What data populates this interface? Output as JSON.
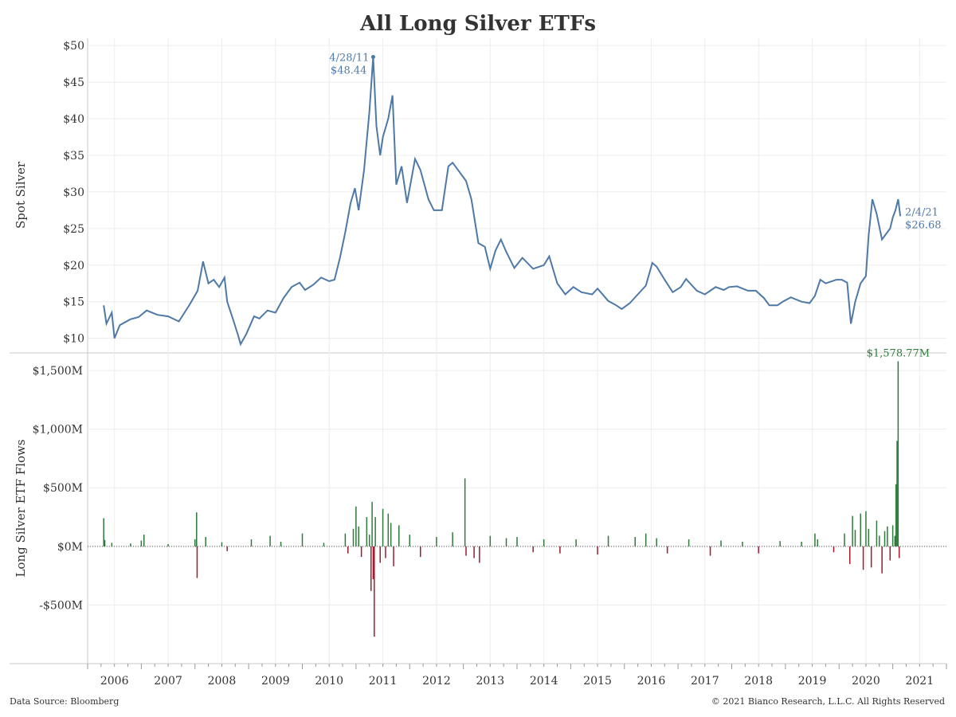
{
  "chart_data": {
    "title": "All Long Silver ETFs",
    "x_axis": {
      "type": "time",
      "range": [
        2006.0,
        2022.0
      ],
      "tick_labels": [
        "2006",
        "2007",
        "2008",
        "2009",
        "2010",
        "2011",
        "2012",
        "2013",
        "2014",
        "2015",
        "2016",
        "2017",
        "2018",
        "2019",
        "2020",
        "2021"
      ]
    },
    "panels": [
      {
        "type": "line",
        "ylabel": "Spot Silver",
        "ylim": [
          8,
          51
        ],
        "y_ticks": [
          10,
          15,
          20,
          25,
          30,
          35,
          40,
          45,
          50
        ],
        "y_tick_labels": [
          "$10",
          "$15",
          "$20",
          "$25",
          "$30",
          "$35",
          "$40",
          "$45",
          "$50"
        ],
        "color": "#4e79a7",
        "series": [
          {
            "name": "Spot Silver",
            "points": [
              [
                2006.3,
                14.5
              ],
              [
                2006.35,
                12.0
              ],
              [
                2006.45,
                13.5
              ],
              [
                2006.5,
                10.0
              ],
              [
                2006.6,
                11.8
              ],
              [
                2006.8,
                12.6
              ],
              [
                2006.95,
                12.9
              ],
              [
                2007.1,
                13.8
              ],
              [
                2007.3,
                13.2
              ],
              [
                2007.5,
                13.0
              ],
              [
                2007.7,
                12.3
              ],
              [
                2007.9,
                14.6
              ],
              [
                2008.05,
                16.5
              ],
              [
                2008.15,
                20.5
              ],
              [
                2008.25,
                17.5
              ],
              [
                2008.35,
                18.0
              ],
              [
                2008.45,
                17.0
              ],
              [
                2008.55,
                18.3
              ],
              [
                2008.6,
                15.0
              ],
              [
                2008.7,
                12.8
              ],
              [
                2008.8,
                10.5
              ],
              [
                2008.85,
                9.2
              ],
              [
                2008.95,
                10.5
              ],
              [
                2009.1,
                13.0
              ],
              [
                2009.2,
                12.7
              ],
              [
                2009.35,
                13.8
              ],
              [
                2009.5,
                13.5
              ],
              [
                2009.65,
                15.5
              ],
              [
                2009.8,
                17.0
              ],
              [
                2009.95,
                17.6
              ],
              [
                2010.05,
                16.6
              ],
              [
                2010.2,
                17.3
              ],
              [
                2010.35,
                18.3
              ],
              [
                2010.5,
                17.8
              ],
              [
                2010.6,
                18.0
              ],
              [
                2010.7,
                21.0
              ],
              [
                2010.8,
                24.5
              ],
              [
                2010.9,
                28.5
              ],
              [
                2010.98,
                30.5
              ],
              [
                2011.05,
                27.5
              ],
              [
                2011.15,
                33.0
              ],
              [
                2011.25,
                41.0
              ],
              [
                2011.32,
                48.44
              ],
              [
                2011.38,
                39.0
              ],
              [
                2011.45,
                35.0
              ],
              [
                2011.5,
                37.5
              ],
              [
                2011.6,
                40.0
              ],
              [
                2011.68,
                43.2
              ],
              [
                2011.75,
                31.0
              ],
              [
                2011.85,
                33.5
              ],
              [
                2011.95,
                28.5
              ],
              [
                2012.1,
                34.5
              ],
              [
                2012.2,
                33.0
              ],
              [
                2012.35,
                29.0
              ],
              [
                2012.45,
                27.5
              ],
              [
                2012.6,
                27.5
              ],
              [
                2012.72,
                33.5
              ],
              [
                2012.8,
                34.0
              ],
              [
                2012.9,
                33.0
              ],
              [
                2013.05,
                31.5
              ],
              [
                2013.15,
                29.0
              ],
              [
                2013.28,
                23.0
              ],
              [
                2013.4,
                22.5
              ],
              [
                2013.5,
                19.5
              ],
              [
                2013.6,
                22.0
              ],
              [
                2013.7,
                23.5
              ],
              [
                2013.8,
                21.8
              ],
              [
                2013.95,
                19.6
              ],
              [
                2014.1,
                21.0
              ],
              [
                2014.3,
                19.5
              ],
              [
                2014.5,
                20.0
              ],
              [
                2014.6,
                21.2
              ],
              [
                2014.75,
                17.5
              ],
              [
                2014.9,
                16.0
              ],
              [
                2015.05,
                17.0
              ],
              [
                2015.2,
                16.3
              ],
              [
                2015.4,
                16.0
              ],
              [
                2015.5,
                16.8
              ],
              [
                2015.7,
                15.1
              ],
              [
                2015.85,
                14.5
              ],
              [
                2015.95,
                14.0
              ],
              [
                2016.1,
                14.8
              ],
              [
                2016.25,
                16.0
              ],
              [
                2016.4,
                17.2
              ],
              [
                2016.52,
                20.3
              ],
              [
                2016.6,
                19.8
              ],
              [
                2016.75,
                18.0
              ],
              [
                2016.9,
                16.3
              ],
              [
                2017.05,
                17.0
              ],
              [
                2017.15,
                18.1
              ],
              [
                2017.35,
                16.5
              ],
              [
                2017.5,
                16.0
              ],
              [
                2017.7,
                17.0
              ],
              [
                2017.85,
                16.6
              ],
              [
                2017.95,
                17.0
              ],
              [
                2018.1,
                17.1
              ],
              [
                2018.3,
                16.5
              ],
              [
                2018.45,
                16.5
              ],
              [
                2018.6,
                15.5
              ],
              [
                2018.7,
                14.5
              ],
              [
                2018.85,
                14.5
              ],
              [
                2018.95,
                15.0
              ],
              [
                2019.1,
                15.6
              ],
              [
                2019.3,
                15.0
              ],
              [
                2019.45,
                14.8
              ],
              [
                2019.55,
                15.8
              ],
              [
                2019.65,
                18.0
              ],
              [
                2019.75,
                17.5
              ],
              [
                2019.95,
                18.0
              ],
              [
                2020.05,
                18.0
              ],
              [
                2020.15,
                17.6
              ],
              [
                2020.22,
                12.0
              ],
              [
                2020.3,
                15.0
              ],
              [
                2020.4,
                17.5
              ],
              [
                2020.5,
                18.5
              ],
              [
                2020.55,
                24.0
              ],
              [
                2020.62,
                29.0
              ],
              [
                2020.7,
                27.0
              ],
              [
                2020.8,
                23.5
              ],
              [
                2020.9,
                24.5
              ],
              [
                2020.95,
                25.0
              ],
              [
                2021.0,
                26.5
              ],
              [
                2021.05,
                27.5
              ],
              [
                2021.1,
                29.0
              ],
              [
                2021.14,
                26.68
              ]
            ]
          }
        ],
        "annotations": [
          {
            "date": "4/28/11",
            "value": "$48.44"
          },
          {
            "date": "2/4/21",
            "value": "$26.68"
          }
        ]
      },
      {
        "type": "bar",
        "ylabel": "Long Silver ETF Flows",
        "ylim": [
          -1000,
          1650
        ],
        "y_ticks": [
          -500,
          0,
          500,
          1000,
          1500
        ],
        "y_tick_labels": [
          "-$500M",
          "$0M",
          "$500M",
          "$1,000M",
          "$1,500M"
        ],
        "units": "$M",
        "positive_color": "#2d7a3a",
        "negative_color": "#a1192b",
        "bars": [
          [
            2006.3,
            240
          ],
          [
            2006.32,
            55
          ],
          [
            2006.45,
            30
          ],
          [
            2006.8,
            25
          ],
          [
            2007.0,
            50
          ],
          [
            2007.05,
            100
          ],
          [
            2007.5,
            20
          ],
          [
            2008.0,
            60
          ],
          [
            2008.03,
            290
          ],
          [
            2008.04,
            -270
          ],
          [
            2008.2,
            80
          ],
          [
            2008.5,
            35
          ],
          [
            2008.6,
            -40
          ],
          [
            2009.05,
            60
          ],
          [
            2009.4,
            90
          ],
          [
            2009.6,
            40
          ],
          [
            2010.0,
            110
          ],
          [
            2010.4,
            30
          ],
          [
            2010.8,
            110
          ],
          [
            2010.85,
            -60
          ],
          [
            2010.95,
            150
          ],
          [
            2011.0,
            340
          ],
          [
            2011.05,
            170
          ],
          [
            2011.1,
            -90
          ],
          [
            2011.2,
            250
          ],
          [
            2011.25,
            100
          ],
          [
            2011.28,
            -380
          ],
          [
            2011.3,
            380
          ],
          [
            2011.32,
            -280
          ],
          [
            2011.34,
            -770
          ],
          [
            2011.36,
            250
          ],
          [
            2011.45,
            -140
          ],
          [
            2011.5,
            320
          ],
          [
            2011.55,
            -100
          ],
          [
            2011.6,
            280
          ],
          [
            2011.65,
            200
          ],
          [
            2011.7,
            -170
          ],
          [
            2011.8,
            180
          ],
          [
            2012.0,
            100
          ],
          [
            2012.2,
            -90
          ],
          [
            2012.5,
            80
          ],
          [
            2012.8,
            120
          ],
          [
            2013.03,
            580
          ],
          [
            2013.05,
            -80
          ],
          [
            2013.2,
            -100
          ],
          [
            2013.3,
            -140
          ],
          [
            2013.5,
            90
          ],
          [
            2013.8,
            70
          ],
          [
            2014.0,
            80
          ],
          [
            2014.3,
            -50
          ],
          [
            2014.5,
            60
          ],
          [
            2014.8,
            -60
          ],
          [
            2015.1,
            60
          ],
          [
            2015.5,
            -70
          ],
          [
            2015.7,
            90
          ],
          [
            2016.2,
            80
          ],
          [
            2016.4,
            110
          ],
          [
            2016.6,
            70
          ],
          [
            2016.8,
            -60
          ],
          [
            2017.2,
            60
          ],
          [
            2017.6,
            -80
          ],
          [
            2017.8,
            50
          ],
          [
            2018.2,
            40
          ],
          [
            2018.5,
            -60
          ],
          [
            2018.9,
            45
          ],
          [
            2019.3,
            40
          ],
          [
            2019.55,
            110
          ],
          [
            2019.6,
            60
          ],
          [
            2019.9,
            -50
          ],
          [
            2020.1,
            110
          ],
          [
            2020.2,
            -150
          ],
          [
            2020.25,
            260
          ],
          [
            2020.3,
            140
          ],
          [
            2020.4,
            280
          ],
          [
            2020.45,
            -200
          ],
          [
            2020.5,
            300
          ],
          [
            2020.55,
            150
          ],
          [
            2020.6,
            -180
          ],
          [
            2020.7,
            220
          ],
          [
            2020.75,
            90
          ],
          [
            2020.8,
            -230
          ],
          [
            2020.85,
            130
          ],
          [
            2020.9,
            170
          ],
          [
            2020.95,
            -120
          ],
          [
            2021.0,
            180
          ],
          [
            2021.04,
            90
          ],
          [
            2021.06,
            530
          ],
          [
            2021.08,
            900
          ],
          [
            2021.1,
            1578.77
          ],
          [
            2021.12,
            -100
          ]
        ],
        "annotations": [
          {
            "value": "$1,578.77M"
          }
        ]
      }
    ]
  },
  "footer": {
    "source": "Data Source: Bloomberg",
    "copyright": "© 2021  Bianco Research, L.L.C. All Rights Reserved"
  }
}
